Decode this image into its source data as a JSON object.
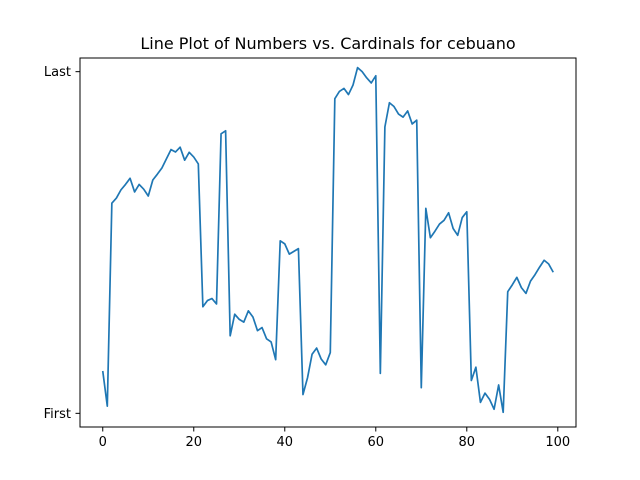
{
  "chart_data": {
    "type": "line",
    "title": "Line Plot of Numbers vs. Cardinals for cebuano",
    "xlabel": "",
    "ylabel": "",
    "xlim": [
      -5,
      104
    ],
    "ylim": [
      -0.04,
      1.04
    ],
    "grid": false,
    "legend": "none",
    "x_ticks": [
      0,
      20,
      40,
      60,
      80,
      100
    ],
    "x_tick_labels": [
      "0",
      "20",
      "40",
      "60",
      "80",
      "100"
    ],
    "y_ticks": [
      0,
      1
    ],
    "y_tick_labels": [
      "First",
      "Last"
    ],
    "series": [
      {
        "color": "#1f77b4",
        "x": [
          0,
          1,
          2,
          3,
          4,
          5,
          6,
          7,
          8,
          9,
          10,
          11,
          12,
          13,
          14,
          15,
          16,
          17,
          18,
          19,
          20,
          21,
          22,
          23,
          24,
          25,
          26,
          27,
          28,
          29,
          30,
          31,
          32,
          33,
          34,
          35,
          36,
          37,
          38,
          39,
          40,
          41,
          42,
          43,
          44,
          45,
          46,
          47,
          48,
          49,
          50,
          51,
          52,
          53,
          54,
          55,
          56,
          57,
          58,
          59,
          60,
          61,
          62,
          63,
          64,
          65,
          66,
          67,
          68,
          69,
          70,
          71,
          72,
          73,
          74,
          75,
          76,
          77,
          78,
          79,
          80,
          81,
          82,
          83,
          84,
          85,
          86,
          87,
          88,
          89,
          90,
          91,
          92,
          93,
          94,
          95,
          96,
          97,
          98,
          99
        ],
        "y": [
          0.124,
          0.021,
          0.615,
          0.63,
          0.654,
          0.67,
          0.688,
          0.648,
          0.67,
          0.656,
          0.636,
          0.683,
          0.7,
          0.718,
          0.745,
          0.772,
          0.765,
          0.779,
          0.741,
          0.764,
          0.75,
          0.73,
          0.312,
          0.33,
          0.336,
          0.32,
          0.818,
          0.827,
          0.227,
          0.29,
          0.275,
          0.267,
          0.3,
          0.282,
          0.242,
          0.251,
          0.218,
          0.209,
          0.157,
          0.505,
          0.496,
          0.466,
          0.474,
          0.482,
          0.055,
          0.104,
          0.173,
          0.191,
          0.159,
          0.142,
          0.178,
          0.921,
          0.942,
          0.951,
          0.933,
          0.961,
          1.012,
          1.0,
          0.982,
          0.967,
          0.988,
          0.117,
          0.838,
          0.909,
          0.898,
          0.876,
          0.867,
          0.885,
          0.847,
          0.858,
          0.075,
          0.6,
          0.514,
          0.533,
          0.554,
          0.565,
          0.587,
          0.541,
          0.521,
          0.573,
          0.59,
          0.096,
          0.135,
          0.032,
          0.059,
          0.041,
          0.012,
          0.083,
          0.003,
          0.356,
          0.376,
          0.398,
          0.368,
          0.351,
          0.387,
          0.406,
          0.428,
          0.448,
          0.437,
          0.413
        ]
      }
    ]
  }
}
